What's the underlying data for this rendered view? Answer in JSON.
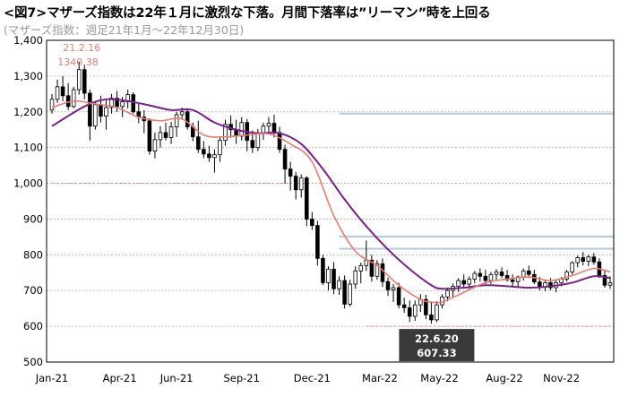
{
  "header": {
    "title": "<図7>マザーズ指数は22年１月に激烈な下落。月間下落率は”リーマン”時を上回る",
    "subtitle": "(マザーズ指数：週足21年1月～22年12月30日)"
  },
  "colors": {
    "candle": "#000000",
    "ma_short": "#f07a6e",
    "ma_long": "#7a1f8e",
    "ref_pink": "#f28c8c",
    "ref_blue": "#b8cbe0",
    "grid": "#b0b0b0",
    "annot_box": "#3a3a3a",
    "annot_text": "#ffffff",
    "high_label": "#f07a6e"
  },
  "chart_data": {
    "type": "candlestick",
    "y_min": 500,
    "y_max": 1400,
    "y_ticks": [
      "500",
      "600",
      "700",
      "800",
      "900",
      "1,000",
      "1,100",
      "1,200",
      "1,300",
      "1,400"
    ],
    "y_tick_values": [
      500,
      600,
      700,
      800,
      900,
      1000,
      1100,
      1200,
      1300,
      1400
    ],
    "x_labels": [
      "Jan-21",
      "Apr-21",
      "Jun-21",
      "Sep-21",
      "Dec-21",
      "Mar-22",
      "May-22",
      "Aug-22",
      "Nov-22"
    ],
    "x_label_weeks": [
      0,
      12.5,
      23,
      35,
      48,
      60.5,
      71.5,
      83.5,
      94
    ],
    "week_count": 104,
    "grid": "horizontal-dashed",
    "ohlc": [
      [
        1205,
        1250,
        1195,
        1235
      ],
      [
        1235,
        1290,
        1225,
        1270
      ],
      [
        1270,
        1300,
        1230,
        1245
      ],
      [
        1245,
        1280,
        1205,
        1215
      ],
      [
        1215,
        1270,
        1210,
        1262
      ],
      [
        1262,
        1340.38,
        1248,
        1318
      ],
      [
        1318,
        1332,
        1235,
        1252
      ],
      [
        1252,
        1262,
        1120,
        1160
      ],
      [
        1160,
        1230,
        1150,
        1220
      ],
      [
        1220,
        1245,
        1170,
        1188
      ],
      [
        1188,
        1232,
        1150,
        1212
      ],
      [
        1212,
        1250,
        1195,
        1238
      ],
      [
        1238,
        1258,
        1200,
        1215
      ],
      [
        1215,
        1242,
        1185,
        1228
      ],
      [
        1228,
        1262,
        1210,
        1248
      ],
      [
        1248,
        1255,
        1195,
        1200
      ],
      [
        1200,
        1222,
        1168,
        1185
      ],
      [
        1185,
        1205,
        1140,
        1175
      ],
      [
        1175,
        1182,
        1080,
        1090
      ],
      [
        1090,
        1142,
        1070,
        1122
      ],
      [
        1122,
        1160,
        1100,
        1142
      ],
      [
        1142,
        1170,
        1120,
        1128
      ],
      [
        1128,
        1172,
        1110,
        1158
      ],
      [
        1158,
        1200,
        1130,
        1192
      ],
      [
        1192,
        1212,
        1178,
        1200
      ],
      [
        1200,
        1210,
        1150,
        1158
      ],
      [
        1158,
        1170,
        1118,
        1130
      ],
      [
        1130,
        1175,
        1085,
        1095
      ],
      [
        1095,
        1118,
        1070,
        1082
      ],
      [
        1082,
        1105,
        1060,
        1072
      ],
      [
        1072,
        1095,
        1030,
        1080
      ],
      [
        1080,
        1128,
        1060,
        1120
      ],
      [
        1120,
        1178,
        1105,
        1165
      ],
      [
        1165,
        1190,
        1128,
        1150
      ],
      [
        1150,
        1178,
        1110,
        1132
      ],
      [
        1132,
        1185,
        1120,
        1170
      ],
      [
        1170,
        1180,
        1090,
        1120
      ],
      [
        1120,
        1148,
        1085,
        1100
      ],
      [
        1100,
        1152,
        1090,
        1140
      ],
      [
        1140,
        1170,
        1122,
        1160
      ],
      [
        1160,
        1185,
        1140,
        1168
      ],
      [
        1168,
        1192,
        1128,
        1142
      ],
      [
        1142,
        1158,
        1085,
        1095
      ],
      [
        1095,
        1108,
        1000,
        1040
      ],
      [
        1040,
        1060,
        980,
        1020
      ],
      [
        1020,
        1032,
        955,
        982
      ],
      [
        982,
        1025,
        960,
        1015
      ],
      [
        1015,
        1020,
        880,
        900
      ],
      [
        900,
        920,
        870,
        882
      ],
      [
        882,
        895,
        770,
        790
      ],
      [
        790,
        800,
        715,
        722
      ],
      [
        722,
        768,
        700,
        760
      ],
      [
        760,
        780,
        690,
        705
      ],
      [
        705,
        740,
        688,
        728
      ],
      [
        728,
        742,
        650,
        662
      ],
      [
        662,
        730,
        655,
        718
      ],
      [
        718,
        768,
        705,
        755
      ],
      [
        755,
        778,
        720,
        770
      ],
      [
        770,
        840,
        755,
        785
      ],
      [
        785,
        800,
        725,
        740
      ],
      [
        740,
        785,
        730,
        775
      ],
      [
        775,
        790,
        710,
        725
      ],
      [
        725,
        736,
        685,
        702
      ],
      [
        702,
        718,
        668,
        708
      ],
      [
        708,
        722,
        650,
        660
      ],
      [
        660,
        680,
        638,
        652
      ],
      [
        652,
        672,
        612,
        628
      ],
      [
        628,
        672,
        615,
        660
      ],
      [
        660,
        690,
        640,
        675
      ],
      [
        675,
        688,
        620,
        632
      ],
      [
        632,
        668,
        607.33,
        618
      ],
      [
        618,
        670,
        612,
        660
      ],
      [
        660,
        690,
        650,
        682
      ],
      [
        682,
        708,
        670,
        700
      ],
      [
        700,
        720,
        680,
        712
      ],
      [
        712,
        735,
        696,
        728
      ],
      [
        728,
        745,
        708,
        718
      ],
      [
        718,
        740,
        705,
        732
      ],
      [
        732,
        755,
        720,
        748
      ],
      [
        748,
        762,
        725,
        740
      ],
      [
        740,
        758,
        718,
        728
      ],
      [
        728,
        752,
        718,
        745
      ],
      [
        745,
        760,
        730,
        752
      ],
      [
        752,
        765,
        735,
        742
      ],
      [
        742,
        758,
        725,
        730
      ],
      [
        730,
        745,
        710,
        725
      ],
      [
        725,
        742,
        712,
        738
      ],
      [
        738,
        762,
        728,
        755
      ],
      [
        755,
        770,
        735,
        745
      ],
      [
        745,
        758,
        718,
        724
      ],
      [
        724,
        738,
        700,
        710
      ],
      [
        710,
        730,
        698,
        722
      ],
      [
        722,
        735,
        700,
        708
      ],
      [
        708,
        728,
        695,
        722
      ],
      [
        722,
        738,
        712,
        732
      ],
      [
        732,
        758,
        725,
        752
      ],
      [
        752,
        782,
        745,
        778
      ],
      [
        778,
        798,
        765,
        792
      ],
      [
        792,
        808,
        770,
        782
      ],
      [
        782,
        800,
        768,
        794
      ],
      [
        794,
        805,
        772,
        780
      ],
      [
        780,
        790,
        735,
        742
      ],
      [
        742,
        755,
        708,
        715
      ],
      [
        715,
        740,
        705,
        722
      ]
    ],
    "ma_short": [
      [
        0,
        1212
      ],
      [
        4,
        1230
      ],
      [
        8,
        1222
      ],
      [
        12,
        1212
      ],
      [
        16,
        1185
      ],
      [
        20,
        1175
      ],
      [
        24,
        1180
      ],
      [
        28,
        1135
      ],
      [
        32,
        1130
      ],
      [
        36,
        1135
      ],
      [
        40,
        1138
      ],
      [
        44,
        1110
      ],
      [
        48,
        1060
      ],
      [
        52,
        910
      ],
      [
        56,
        810
      ],
      [
        60,
        770
      ],
      [
        64,
        715
      ],
      [
        68,
        675
      ],
      [
        70,
        668
      ],
      [
        72,
        668
      ],
      [
        76,
        695
      ],
      [
        80,
        722
      ],
      [
        84,
        732
      ],
      [
        88,
        738
      ],
      [
        92,
        728
      ],
      [
        96,
        742
      ],
      [
        100,
        762
      ],
      [
        103,
        752
      ]
    ],
    "ma_long": [
      [
        0,
        1160
      ],
      [
        6,
        1215
      ],
      [
        10,
        1235
      ],
      [
        14,
        1230
      ],
      [
        18,
        1218
      ],
      [
        22,
        1205
      ],
      [
        26,
        1205
      ],
      [
        30,
        1170
      ],
      [
        34,
        1150
      ],
      [
        38,
        1140
      ],
      [
        42,
        1140
      ],
      [
        46,
        1110
      ],
      [
        50,
        1040
      ],
      [
        54,
        955
      ],
      [
        58,
        880
      ],
      [
        62,
        815
      ],
      [
        66,
        760
      ],
      [
        70,
        715
      ],
      [
        72,
        705
      ],
      [
        76,
        708
      ],
      [
        80,
        715
      ],
      [
        84,
        712
      ],
      [
        88,
        708
      ],
      [
        92,
        712
      ],
      [
        96,
        722
      ],
      [
        100,
        740
      ],
      [
        103,
        735
      ]
    ],
    "reference_lines": [
      {
        "value": 1195,
        "from_week": 53,
        "to_week": 104,
        "color": "ref_blue"
      },
      {
        "value": 1000,
        "from_week": 0,
        "to_week": 48,
        "color": "ref_pink"
      },
      {
        "value": 851,
        "from_week": 53,
        "to_week": 104,
        "color": "ref_blue"
      },
      {
        "value": 817,
        "from_week": 53,
        "to_week": 104,
        "color": "ref_blue"
      },
      {
        "value": 600,
        "from_week": 58,
        "to_week": 104,
        "color": "ref_pink"
      }
    ],
    "annotations": [
      {
        "date": "21.2.16",
        "value": "1340.38",
        "week": 5,
        "kind": "high"
      },
      {
        "date": "22.6.20",
        "value": "607.33",
        "week": 70,
        "kind": "low"
      }
    ]
  }
}
